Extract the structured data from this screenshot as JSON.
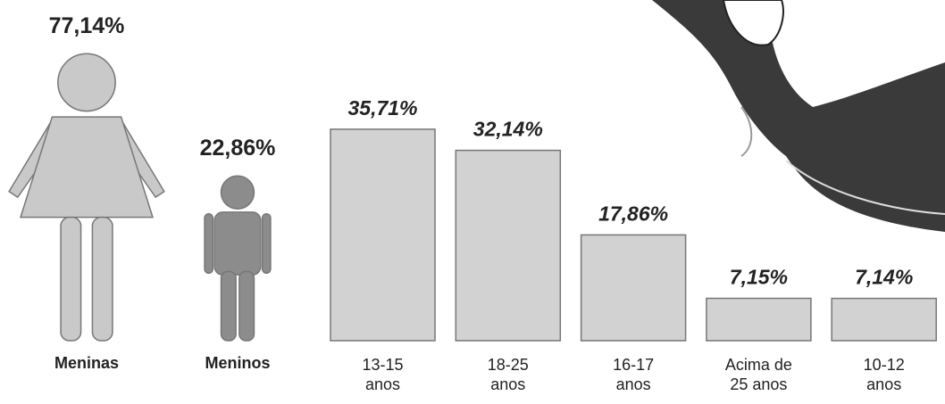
{
  "chart_data": [
    {
      "type": "pictogram",
      "categories": [
        "Meninas",
        "Meninos"
      ],
      "values": [
        77.14,
        22.86
      ],
      "value_labels": [
        "77,14%",
        "22,86%"
      ],
      "colors": [
        "#c9c9c9",
        "#8c8c8c"
      ]
    },
    {
      "type": "bar",
      "categories": [
        [
          "13-15",
          "anos"
        ],
        [
          "18-25",
          "anos"
        ],
        [
          "16-17",
          "anos"
        ],
        [
          "Acima de",
          "25 anos"
        ],
        [
          "10-12",
          "anos"
        ]
      ],
      "values": [
        35.71,
        32.14,
        17.86,
        7.15,
        7.14
      ],
      "value_labels": [
        "35,71%",
        "32,14%",
        "17,86%",
        "7,15%",
        "7,14%"
      ],
      "color": "#d2d2d2"
    }
  ]
}
